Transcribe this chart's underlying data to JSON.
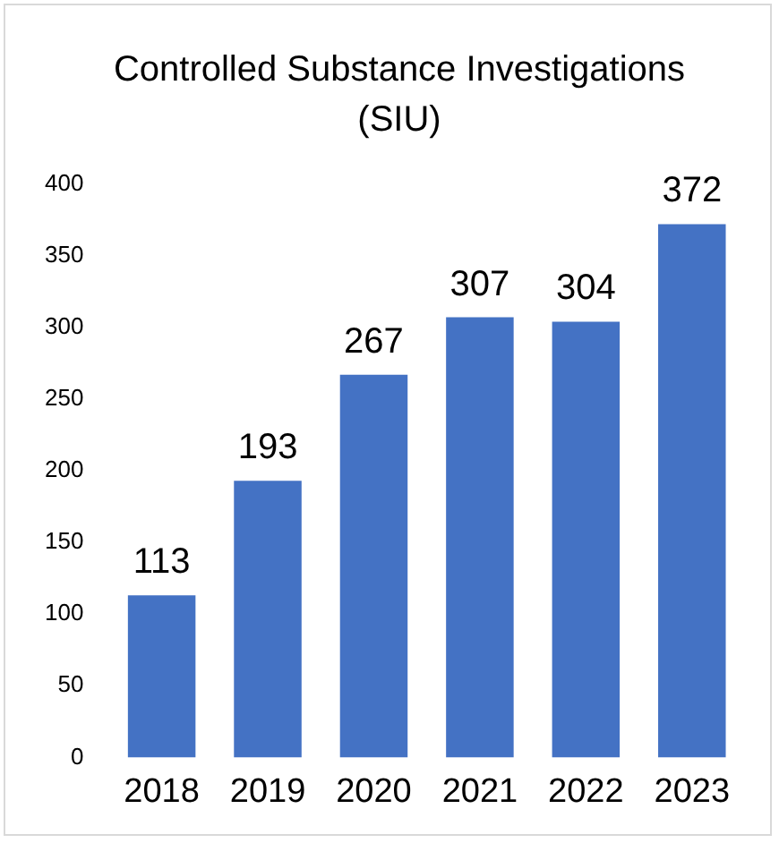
{
  "chart_data": {
    "type": "bar",
    "title": "Controlled Substance Investigations (SIU)",
    "categories": [
      "2018",
      "2019",
      "2020",
      "2021",
      "2022",
      "2023"
    ],
    "values": [
      113,
      193,
      267,
      307,
      304,
      372
    ],
    "color": "#4472c4",
    "ylim": [
      0,
      400
    ],
    "yticks": [
      0,
      50,
      100,
      150,
      200,
      250,
      300,
      350,
      400
    ],
    "grid": false,
    "data_labels": true
  }
}
